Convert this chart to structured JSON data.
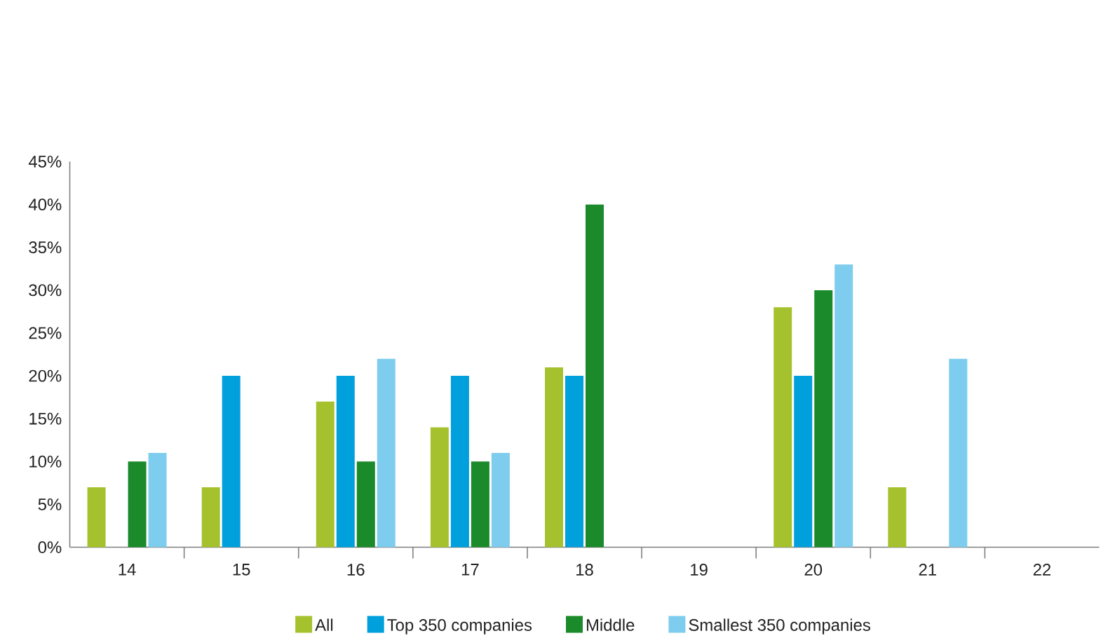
{
  "chart_data": {
    "type": "bar",
    "categories": [
      "14",
      "15",
      "16",
      "17",
      "18",
      "19",
      "20",
      "21",
      "22"
    ],
    "series": [
      {
        "name": "All",
        "color": "#a5c22e",
        "values": [
          7,
          7,
          17,
          14,
          21,
          0,
          28,
          7,
          0
        ]
      },
      {
        "name": "Top 350 companies",
        "color": "#00a0dc",
        "values": [
          0,
          20,
          20,
          20,
          20,
          0,
          20,
          0,
          0
        ]
      },
      {
        "name": "Middle",
        "color": "#1a8a2a",
        "values": [
          10,
          0,
          10,
          10,
          40,
          0,
          30,
          0,
          0
        ]
      },
      {
        "name": "Smallest 350 companies",
        "color": "#7ecdee",
        "values": [
          11,
          0,
          22,
          11,
          0,
          0,
          33,
          22,
          0
        ]
      }
    ],
    "ylim": [
      0,
      45
    ],
    "yticks": [
      {
        "value": 0,
        "label": "0%"
      },
      {
        "value": 5,
        "label": "5%"
      },
      {
        "value": 10,
        "label": "10%"
      },
      {
        "value": 15,
        "label": "15%"
      },
      {
        "value": 20,
        "label": "20%"
      },
      {
        "value": 25,
        "label": "25%"
      },
      {
        "value": 30,
        "label": "30%"
      },
      {
        "value": 35,
        "label": "35%"
      },
      {
        "value": 40,
        "label": "40%"
      },
      {
        "value": 45,
        "label": "45%"
      }
    ],
    "grid": false,
    "legend": "bottom"
  }
}
